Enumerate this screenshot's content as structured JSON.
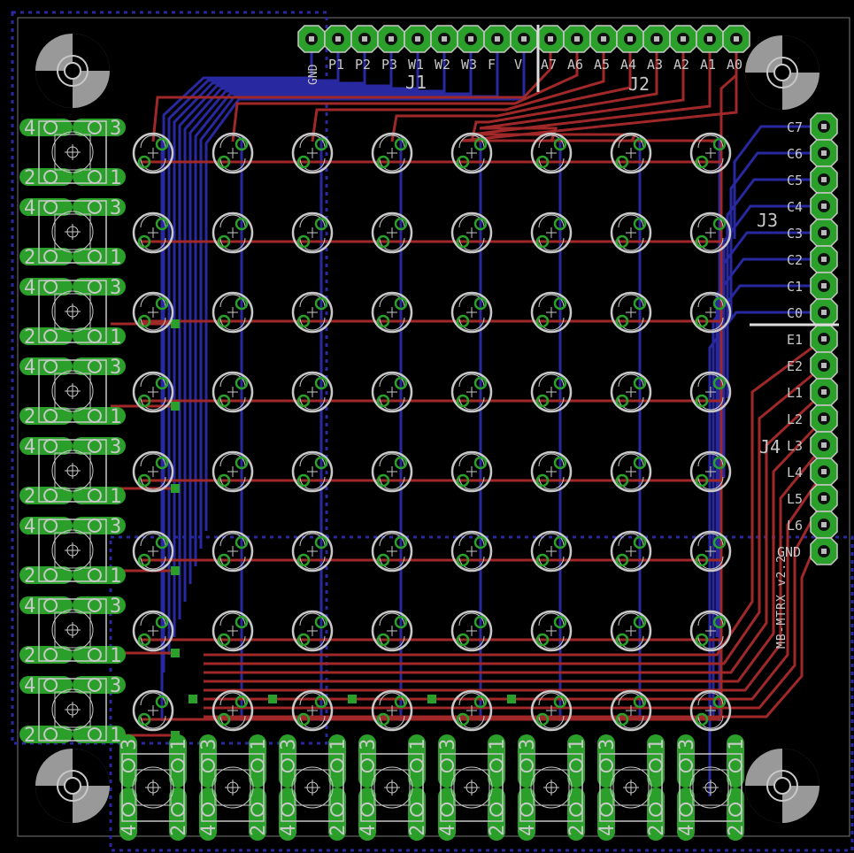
{
  "board": {
    "name": "MB-MTRX v2.2",
    "colors": {
      "background": "#000000",
      "top_copper": "#a02828",
      "bottom_copper": "#2828a0",
      "pads": "#2aa02a",
      "silkscreen": "#c8c8c8",
      "outline": "#ffffff"
    }
  },
  "connectors": {
    "J1": {
      "name": "J1",
      "pins": [
        "GND",
        "P1",
        "P2",
        "P3",
        "W1",
        "W2",
        "W3",
        "F",
        "V"
      ]
    },
    "J2": {
      "name": "J2",
      "pins": [
        "A7",
        "A6",
        "A5",
        "A4",
        "A3",
        "A2",
        "A1",
        "A0"
      ]
    },
    "J3": {
      "name": "J3",
      "pins": [
        "C7",
        "C6",
        "C5",
        "C4",
        "C3",
        "C2",
        "C1",
        "C0"
      ]
    },
    "J4": {
      "name": "J4",
      "pins": [
        "E1",
        "E2",
        "L1",
        "L2",
        "L3",
        "L4",
        "L5",
        "L6",
        "GND"
      ]
    }
  },
  "led_matrix": {
    "rows": 8,
    "cols": 8
  },
  "buttons": {
    "left_count": 8,
    "bottom_count": 8,
    "pin_labels": [
      "1",
      "2",
      "3",
      "4"
    ]
  },
  "mounting_holes": 4
}
